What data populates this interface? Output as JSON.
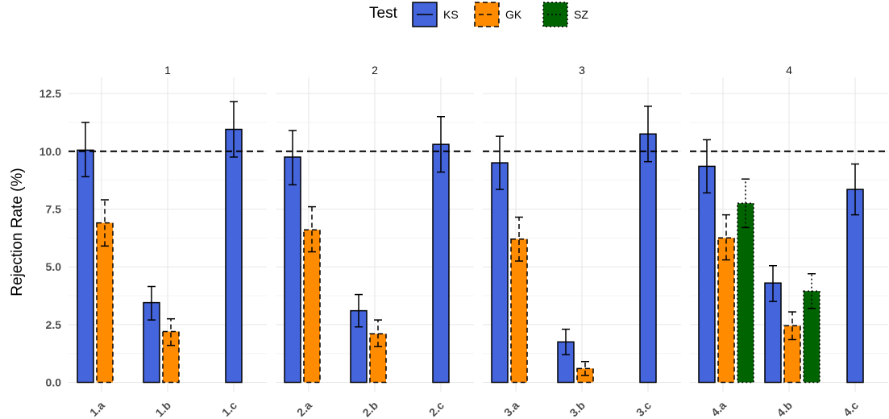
{
  "chart_data": {
    "type": "bar",
    "ylabel": "Rejection Rate (%)",
    "ylim": [
      -0.4,
      13.2
    ],
    "yticks": [
      "0.0",
      "2.5",
      "5.0",
      "7.5",
      "10.0",
      "12.5"
    ],
    "ytick_values": [
      0,
      2.5,
      5,
      7.5,
      10,
      12.5
    ],
    "reference_line": 10,
    "grid": true,
    "legend": {
      "title": "Test",
      "position": "top",
      "entries": [
        {
          "name": "KS",
          "color": "#4565dc",
          "dash": "solid"
        },
        {
          "name": "GK",
          "color": "#ff8c00",
          "dash": "dashed"
        },
        {
          "name": "SZ",
          "color": "#006400",
          "dash": "dotted"
        }
      ]
    },
    "panels": [
      {
        "label": "1",
        "groups": [
          {
            "label": "1.a",
            "bars": [
              {
                "test": "KS",
                "value": 10.05,
                "lo": 8.9,
                "hi": 11.25
              },
              {
                "test": "GK",
                "value": 6.9,
                "lo": 5.9,
                "hi": 7.9
              }
            ]
          },
          {
            "label": "1.b",
            "bars": [
              {
                "test": "KS",
                "value": 3.45,
                "lo": 2.7,
                "hi": 4.15
              },
              {
                "test": "GK",
                "value": 2.2,
                "lo": 1.6,
                "hi": 2.75
              }
            ]
          },
          {
            "label": "1.c",
            "bars": [
              {
                "test": "KS",
                "value": 10.95,
                "lo": 9.75,
                "hi": 12.15
              }
            ]
          }
        ]
      },
      {
        "label": "2",
        "groups": [
          {
            "label": "2.a",
            "bars": [
              {
                "test": "KS",
                "value": 9.75,
                "lo": 8.55,
                "hi": 10.9
              },
              {
                "test": "GK",
                "value": 6.6,
                "lo": 5.65,
                "hi": 7.6
              }
            ]
          },
          {
            "label": "2.b",
            "bars": [
              {
                "test": "KS",
                "value": 3.1,
                "lo": 2.4,
                "hi": 3.8
              },
              {
                "test": "GK",
                "value": 2.1,
                "lo": 1.55,
                "hi": 2.7
              }
            ]
          },
          {
            "label": "2.c",
            "bars": [
              {
                "test": "KS",
                "value": 10.3,
                "lo": 9.1,
                "hi": 11.5
              }
            ]
          }
        ]
      },
      {
        "label": "3",
        "groups": [
          {
            "label": "3.a",
            "bars": [
              {
                "test": "KS",
                "value": 9.5,
                "lo": 8.35,
                "hi": 10.65
              },
              {
                "test": "GK",
                "value": 6.2,
                "lo": 5.25,
                "hi": 7.15
              }
            ]
          },
          {
            "label": "3.b",
            "bars": [
              {
                "test": "KS",
                "value": 1.75,
                "lo": 1.2,
                "hi": 2.3
              },
              {
                "test": "GK",
                "value": 0.6,
                "lo": 0.3,
                "hi": 0.9
              }
            ]
          },
          {
            "label": "3.c",
            "bars": [
              {
                "test": "KS",
                "value": 10.75,
                "lo": 9.55,
                "hi": 11.95
              }
            ]
          }
        ]
      },
      {
        "label": "4",
        "groups": [
          {
            "label": "4.a",
            "bars": [
              {
                "test": "KS",
                "value": 9.35,
                "lo": 8.2,
                "hi": 10.5
              },
              {
                "test": "GK",
                "value": 6.25,
                "lo": 5.3,
                "hi": 7.25
              },
              {
                "test": "SZ",
                "value": 7.75,
                "lo": 6.7,
                "hi": 8.8
              }
            ]
          },
          {
            "label": "4.b",
            "bars": [
              {
                "test": "KS",
                "value": 4.3,
                "lo": 3.5,
                "hi": 5.05
              },
              {
                "test": "GK",
                "value": 2.45,
                "lo": 1.85,
                "hi": 3.05
              },
              {
                "test": "SZ",
                "value": 3.95,
                "lo": 3.2,
                "hi": 4.7
              }
            ]
          },
          {
            "label": "4.c",
            "bars": [
              {
                "test": "KS",
                "value": 8.35,
                "lo": 7.25,
                "hi": 9.45
              }
            ]
          }
        ]
      }
    ]
  }
}
